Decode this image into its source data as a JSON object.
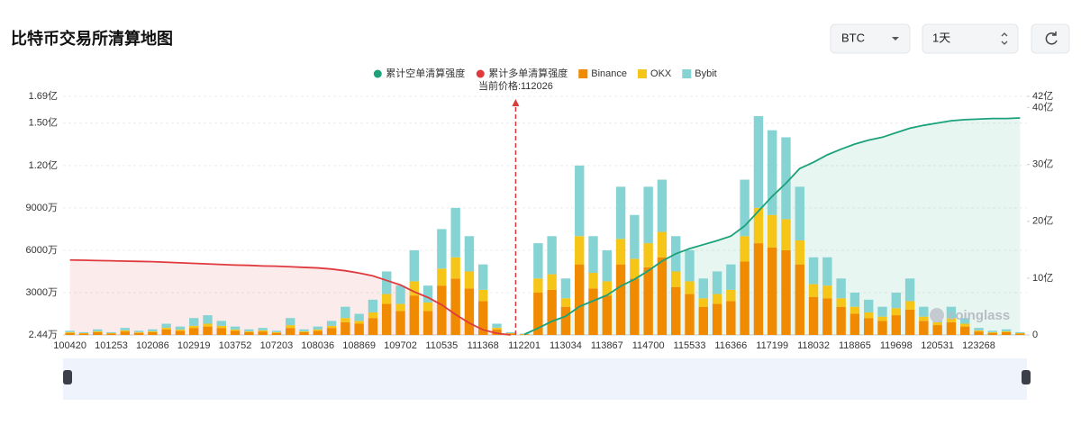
{
  "title": "比特币交易所清算地图",
  "controls": {
    "symbol": "BTC",
    "interval": "1天"
  },
  "watermark": "coinglass",
  "chart_data": {
    "type": "bar",
    "current_price": {
      "value": 112026,
      "label": "当前价格:112026"
    },
    "categories": [
      "100420",
      null,
      null,
      "101253",
      null,
      null,
      "102086",
      null,
      null,
      "102919",
      null,
      null,
      "103752",
      null,
      null,
      "107203",
      null,
      null,
      "108036",
      null,
      null,
      "108869",
      null,
      null,
      "109702",
      null,
      null,
      "110535",
      null,
      null,
      "111368",
      null,
      null,
      "112201",
      null,
      null,
      "113034",
      null,
      null,
      "113867",
      null,
      null,
      "114700",
      null,
      null,
      "115533",
      null,
      null,
      "116366",
      null,
      null,
      "117199",
      null,
      null,
      "118032",
      null,
      null,
      "118865",
      null,
      null,
      "119698",
      null,
      null,
      "120531",
      null,
      null,
      "123268",
      null,
      null,
      null
    ],
    "ylim": [
      24400,
      169000000
    ],
    "yticks": [
      {
        "value": 24400,
        "label": "2.44万"
      },
      {
        "value": 30000000,
        "label": "3000万"
      },
      {
        "value": 60000000,
        "label": "6000万"
      },
      {
        "value": 90000000,
        "label": "9000万"
      },
      {
        "value": 120000000,
        "label": "1.20亿"
      },
      {
        "value": 150000000,
        "label": "1.50亿"
      },
      {
        "value": 169000000,
        "label": "1.69亿"
      }
    ],
    "y2lim": [
      0,
      4200000000
    ],
    "y2ticks": [
      0,
      {
        "value": 1000000000,
        "label": "10亿"
      },
      {
        "value": 2000000000,
        "label": "20亿"
      },
      {
        "value": 3000000000,
        "label": "30亿"
      },
      {
        "value": 4000000000,
        "label": "40亿"
      },
      {
        "value": 4200000000,
        "label": "42亿"
      }
    ],
    "grid": true,
    "series": [
      {
        "name": "累计空单清算强度",
        "type": "line",
        "axis": "y2",
        "color": "#1ba27a",
        "fill": "rgba(27,162,122,0.10)",
        "values": [
          null,
          null,
          null,
          null,
          null,
          null,
          null,
          null,
          null,
          null,
          null,
          null,
          null,
          null,
          null,
          null,
          null,
          null,
          null,
          null,
          null,
          null,
          null,
          null,
          null,
          null,
          null,
          null,
          null,
          null,
          null,
          null,
          null,
          10000000,
          120000000,
          240000000,
          330000000,
          500000000,
          600000000,
          700000000,
          860000000,
          980000000,
          1130000000,
          1300000000,
          1430000000,
          1520000000,
          1590000000,
          1660000000,
          1740000000,
          1920000000,
          2180000000,
          2440000000,
          2670000000,
          2930000000,
          3040000000,
          3170000000,
          3270000000,
          3360000000,
          3430000000,
          3480000000,
          3560000000,
          3640000000,
          3690000000,
          3730000000,
          3770000000,
          3790000000,
          3800000000,
          3810000000,
          3810000000,
          3820000000
        ]
      },
      {
        "name": "累计多单清算强度",
        "type": "line",
        "axis": "y2",
        "color": "#e03a3e",
        "fill": "rgba(224,58,62,0.10)",
        "values": [
          1320000000,
          1315000000,
          1310000000,
          1305000000,
          1300000000,
          1295000000,
          1290000000,
          1280000000,
          1270000000,
          1260000000,
          1250000000,
          1240000000,
          1230000000,
          1225000000,
          1215000000,
          1210000000,
          1200000000,
          1190000000,
          1180000000,
          1160000000,
          1130000000,
          1090000000,
          1040000000,
          960000000,
          880000000,
          760000000,
          660000000,
          530000000,
          360000000,
          210000000,
          90000000,
          30000000,
          0,
          null,
          null,
          null,
          null,
          null,
          null,
          null,
          null,
          null,
          null,
          null,
          null,
          null,
          null,
          null,
          null,
          null,
          null,
          null,
          null,
          null,
          null,
          null,
          null,
          null,
          null,
          null,
          null,
          null,
          null,
          null,
          null,
          null,
          null,
          null,
          null,
          null
        ]
      },
      {
        "name": "Binance",
        "type": "bar",
        "color": "#f08a00",
        "values": [
          1500000,
          1000000,
          2000000,
          1000000,
          2500000,
          1500000,
          2000000,
          4000000,
          3000000,
          5000000,
          6000000,
          5000000,
          3000000,
          2000000,
          2500000,
          1500000,
          5000000,
          2000000,
          3000000,
          5000000,
          9000000,
          8000000,
          12000000,
          22000000,
          17000000,
          28000000,
          17000000,
          35000000,
          40000000,
          33000000,
          24000000,
          4000000,
          1000000,
          500000,
          30000000,
          32000000,
          20000000,
          50000000,
          33000000,
          28000000,
          50000000,
          40000000,
          48000000,
          55000000,
          34000000,
          29000000,
          20000000,
          22000000,
          24000000,
          52000000,
          65000000,
          62000000,
          60000000,
          50000000,
          27000000,
          26000000,
          20000000,
          15000000,
          12000000,
          10000000,
          14000000,
          18000000,
          10000000,
          7000000,
          9000000,
          6000000,
          2500000,
          1500000,
          2000000,
          1000000
        ]
      },
      {
        "name": "OKX",
        "type": "bar",
        "color": "#f5c518",
        "values": [
          500000,
          300000,
          600000,
          300000,
          800000,
          500000,
          600000,
          1200000,
          900000,
          1500000,
          2000000,
          1500000,
          900000,
          600000,
          800000,
          500000,
          2000000,
          600000,
          900000,
          1500000,
          3000000,
          2000000,
          4000000,
          7000000,
          5000000,
          10000000,
          6000000,
          12000000,
          15000000,
          12000000,
          8000000,
          1200000,
          300000,
          200000,
          10000000,
          11000000,
          6000000,
          20000000,
          11000000,
          10000000,
          18000000,
          14000000,
          17000000,
          18000000,
          11000000,
          9000000,
          6000000,
          7000000,
          8000000,
          18000000,
          25000000,
          23000000,
          22000000,
          17000000,
          9000000,
          9000000,
          6000000,
          5000000,
          4000000,
          3000000,
          5000000,
          6000000,
          3000000,
          2000000,
          3000000,
          2000000,
          800000,
          500000,
          600000,
          300000
        ]
      },
      {
        "name": "Bybit",
        "type": "bar",
        "color": "#86d3d3",
        "values": [
          1000000,
          700000,
          1400000,
          700000,
          1700000,
          1000000,
          1400000,
          2800000,
          2100000,
          5500000,
          6000000,
          3500000,
          2100000,
          1400000,
          1700000,
          1000000,
          5000000,
          1400000,
          2100000,
          3500000,
          8000000,
          5000000,
          9000000,
          16000000,
          13000000,
          22000000,
          12000000,
          28000000,
          35000000,
          25000000,
          18000000,
          2800000,
          700000,
          300000,
          25000000,
          27000000,
          14000000,
          50000000,
          26000000,
          22000000,
          37000000,
          31000000,
          40000000,
          37000000,
          25000000,
          22000000,
          14000000,
          16000000,
          18000000,
          40000000,
          65000000,
          60000000,
          58000000,
          38000000,
          19000000,
          20000000,
          14000000,
          10000000,
          9000000,
          7000000,
          11000000,
          16000000,
          7000000,
          6000000,
          8000000,
          4000000,
          1700000,
          1000000,
          1400000,
          700000
        ]
      }
    ]
  }
}
